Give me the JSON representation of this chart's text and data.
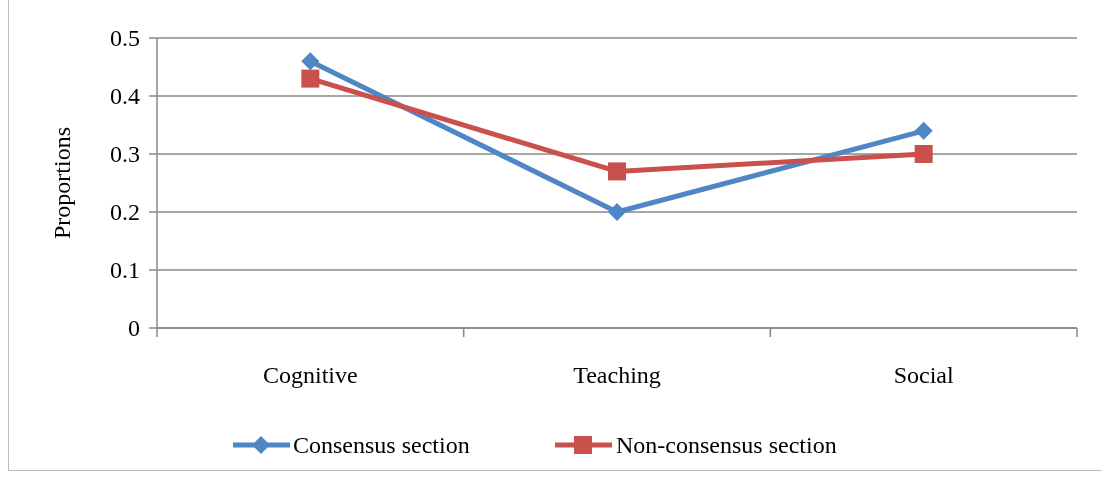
{
  "chart_data": {
    "type": "line",
    "ylabel": "Proportions",
    "categories": [
      "Cognitive",
      "Teaching",
      "Social"
    ],
    "series": [
      {
        "name": "Consensus section",
        "color": "#4f86c6",
        "values": [
          0.46,
          0.2,
          0.34
        ],
        "marker": "diamond"
      },
      {
        "name": "Non-consensus section",
        "color": "#c9504c",
        "values": [
          0.43,
          0.27,
          0.3
        ],
        "marker": "square"
      }
    ],
    "ylim": [
      0,
      0.5
    ],
    "yticks": [
      0,
      0.1,
      0.2,
      0.3,
      0.4,
      0.5
    ],
    "grid": "y",
    "legend": "bottom"
  }
}
